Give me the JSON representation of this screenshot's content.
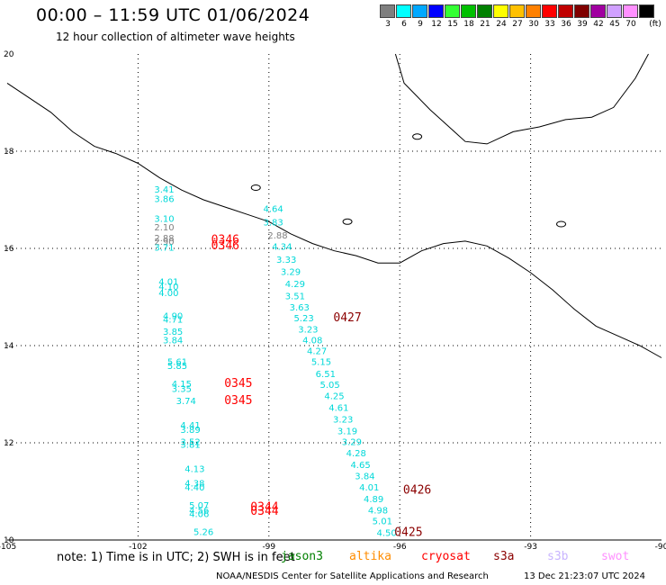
{
  "title": "00:00 – 11:59 UTC 01/06/2024",
  "subtitle": "12 hour collection of altimeter wave heights",
  "color_scale": {
    "unit_label": "(ft)",
    "swatches": [
      {
        "color": "#7f7f7f",
        "label": "3"
      },
      {
        "color": "#00ffff",
        "label": "6"
      },
      {
        "color": "#00a8ff",
        "label": "9"
      },
      {
        "color": "#0000ff",
        "label": "12"
      },
      {
        "color": "#33ff33",
        "label": "15"
      },
      {
        "color": "#00c000",
        "label": "18"
      },
      {
        "color": "#008000",
        "label": "21"
      },
      {
        "color": "#ffff00",
        "label": "24"
      },
      {
        "color": "#ffc000",
        "label": "27"
      },
      {
        "color": "#ff8000",
        "label": "30"
      },
      {
        "color": "#ff0000",
        "label": "33"
      },
      {
        "color": "#c00000",
        "label": "36"
      },
      {
        "color": "#800000",
        "label": "39"
      },
      {
        "color": "#a000a0",
        "label": "42"
      },
      {
        "color": "#d0a0ff",
        "label": "45"
      },
      {
        "color": "#ff90ff",
        "label": "70"
      },
      {
        "color": "#000000",
        "label": ""
      }
    ]
  },
  "axes": {
    "lon_ticks": [
      "-105",
      "-102",
      "-99",
      "-96",
      "-93",
      "-90"
    ],
    "lat_ticks": [
      "20",
      "18",
      "16",
      "14",
      "12",
      "10"
    ],
    "lon_range": [
      -105,
      -90
    ],
    "lat_range": [
      10,
      20
    ]
  },
  "map": {
    "type": "map",
    "coastline": [
      [
        -105,
        19.4
      ],
      [
        -104.5,
        19.1
      ],
      [
        -104,
        18.8
      ],
      [
        -103.5,
        18.4
      ],
      [
        -103,
        18.1
      ],
      [
        -102.5,
        17.95
      ],
      [
        -102,
        17.75
      ],
      [
        -101.5,
        17.45
      ],
      [
        -101,
        17.2
      ],
      [
        -100.5,
        17.0
      ],
      [
        -100,
        16.85
      ],
      [
        -99.5,
        16.7
      ],
      [
        -99,
        16.55
      ],
      [
        -98.5,
        16.3
      ],
      [
        -98,
        16.1
      ],
      [
        -97.5,
        15.95
      ],
      [
        -97,
        15.85
      ],
      [
        -96.5,
        15.7
      ],
      [
        -96,
        15.7
      ],
      [
        -95.5,
        15.95
      ],
      [
        -95,
        16.1
      ],
      [
        -94.5,
        16.15
      ],
      [
        -94,
        16.05
      ],
      [
        -93.5,
        15.8
      ],
      [
        -93,
        15.5
      ],
      [
        -92.5,
        15.15
      ],
      [
        -92,
        14.75
      ],
      [
        -91.5,
        14.4
      ],
      [
        -91,
        14.2
      ],
      [
        -90.5,
        14.0
      ],
      [
        -90,
        13.75
      ]
    ],
    "gulf_coast": [
      [
        -96.1,
        20.0
      ],
      [
        -95.9,
        19.4
      ],
      [
        -95.3,
        18.85
      ],
      [
        -94.5,
        18.2
      ],
      [
        -94,
        18.15
      ],
      [
        -93.4,
        18.4
      ],
      [
        -92.8,
        18.5
      ],
      [
        -92.2,
        18.65
      ],
      [
        -91.6,
        18.7
      ],
      [
        -91.1,
        18.9
      ],
      [
        -90.6,
        19.5
      ],
      [
        -90.3,
        20.0
      ]
    ],
    "lakes": [
      [
        -95.6,
        18.3
      ],
      [
        -97.2,
        16.55
      ],
      [
        -92.3,
        16.5
      ],
      [
        -99.3,
        17.25
      ]
    ]
  },
  "wave_heights": [
    {
      "lon": -101.4,
      "lat": 17.15,
      "v": "3.41",
      "c": "cyan"
    },
    {
      "lon": -101.4,
      "lat": 16.95,
      "v": "3.86",
      "c": "cyan"
    },
    {
      "lon": -101.4,
      "lat": 16.55,
      "v": "3.10",
      "c": "cyan"
    },
    {
      "lon": -101.4,
      "lat": 16.37,
      "v": "2.10",
      "c": "gray"
    },
    {
      "lon": -101.4,
      "lat": 16.15,
      "v": "2.88",
      "c": "gray"
    },
    {
      "lon": -101.4,
      "lat": 16.07,
      "v": "2.90",
      "c": "gray"
    },
    {
      "lon": -101.4,
      "lat": 15.95,
      "v": "3.71",
      "c": "cyan"
    },
    {
      "lon": -101.3,
      "lat": 15.25,
      "v": "4.01",
      "c": "cyan"
    },
    {
      "lon": -101.3,
      "lat": 15.15,
      "v": "4.10",
      "c": "cyan"
    },
    {
      "lon": -101.3,
      "lat": 15.02,
      "v": "4.00",
      "c": "cyan"
    },
    {
      "lon": -101.2,
      "lat": 14.55,
      "v": "4.90",
      "c": "cyan"
    },
    {
      "lon": -101.2,
      "lat": 14.47,
      "v": "4.71",
      "c": "cyan"
    },
    {
      "lon": -101.2,
      "lat": 14.22,
      "v": "3.85",
      "c": "cyan"
    },
    {
      "lon": -101.2,
      "lat": 14.05,
      "v": "3.84",
      "c": "cyan"
    },
    {
      "lon": -101.1,
      "lat": 13.6,
      "v": "5.61",
      "c": "cyan"
    },
    {
      "lon": -101.1,
      "lat": 13.52,
      "v": "5.85",
      "c": "cyan"
    },
    {
      "lon": -101.0,
      "lat": 13.15,
      "v": "4.15",
      "c": "cyan"
    },
    {
      "lon": -101.0,
      "lat": 13.05,
      "v": "3.35",
      "c": "cyan"
    },
    {
      "lon": -100.9,
      "lat": 12.8,
      "v": "3.74",
      "c": "cyan"
    },
    {
      "lon": -100.8,
      "lat": 12.3,
      "v": "4.41",
      "c": "cyan"
    },
    {
      "lon": -100.8,
      "lat": 12.2,
      "v": "3.89",
      "c": "cyan"
    },
    {
      "lon": -100.8,
      "lat": 11.95,
      "v": "3.52",
      "c": "cyan"
    },
    {
      "lon": -100.8,
      "lat": 11.9,
      "v": "3.81",
      "c": "cyan"
    },
    {
      "lon": -100.7,
      "lat": 11.4,
      "v": "4.13",
      "c": "cyan"
    },
    {
      "lon": -100.7,
      "lat": 11.1,
      "v": "4.38",
      "c": "cyan"
    },
    {
      "lon": -100.7,
      "lat": 11.02,
      "v": "4.40",
      "c": "cyan"
    },
    {
      "lon": -100.6,
      "lat": 10.65,
      "v": "5.07",
      "c": "cyan"
    },
    {
      "lon": -100.6,
      "lat": 10.55,
      "v": "4.56",
      "c": "cyan"
    },
    {
      "lon": -100.6,
      "lat": 10.47,
      "v": "4.06",
      "c": "cyan"
    },
    {
      "lon": -100.5,
      "lat": 10.1,
      "v": "5.26",
      "c": "cyan"
    },
    {
      "lon": -98.9,
      "lat": 16.75,
      "v": "4.64",
      "c": "cyan"
    },
    {
      "lon": -98.9,
      "lat": 16.47,
      "v": "3.83",
      "c": "cyan"
    },
    {
      "lon": -98.8,
      "lat": 16.2,
      "v": "2.88",
      "c": "gray"
    },
    {
      "lon": -98.7,
      "lat": 15.97,
      "v": "4.34",
      "c": "cyan"
    },
    {
      "lon": -98.6,
      "lat": 15.7,
      "v": "3.33",
      "c": "cyan"
    },
    {
      "lon": -98.5,
      "lat": 15.45,
      "v": "3.29",
      "c": "cyan"
    },
    {
      "lon": -98.4,
      "lat": 15.2,
      "v": "4.29",
      "c": "cyan"
    },
    {
      "lon": -98.4,
      "lat": 14.95,
      "v": "3.51",
      "c": "cyan"
    },
    {
      "lon": -98.3,
      "lat": 14.72,
      "v": "3.63",
      "c": "cyan"
    },
    {
      "lon": -98.2,
      "lat": 14.5,
      "v": "5.23",
      "c": "cyan"
    },
    {
      "lon": -98.1,
      "lat": 14.27,
      "v": "3.23",
      "c": "cyan"
    },
    {
      "lon": -98.0,
      "lat": 14.05,
      "v": "4.08",
      "c": "cyan"
    },
    {
      "lon": -97.9,
      "lat": 13.82,
      "v": "4.27",
      "c": "cyan"
    },
    {
      "lon": -97.8,
      "lat": 13.6,
      "v": "5.15",
      "c": "cyan"
    },
    {
      "lon": -97.7,
      "lat": 13.35,
      "v": "6.51",
      "c": "cyan"
    },
    {
      "lon": -97.6,
      "lat": 13.13,
      "v": "5.05",
      "c": "cyan"
    },
    {
      "lon": -97.5,
      "lat": 12.9,
      "v": "4.25",
      "c": "cyan"
    },
    {
      "lon": -97.4,
      "lat": 12.66,
      "v": "4.61",
      "c": "cyan"
    },
    {
      "lon": -97.3,
      "lat": 12.42,
      "v": "3.23",
      "c": "cyan"
    },
    {
      "lon": -97.2,
      "lat": 12.18,
      "v": "3.19",
      "c": "cyan"
    },
    {
      "lon": -97.1,
      "lat": 11.95,
      "v": "3.29",
      "c": "cyan"
    },
    {
      "lon": -97.0,
      "lat": 11.72,
      "v": "4.28",
      "c": "cyan"
    },
    {
      "lon": -96.9,
      "lat": 11.48,
      "v": "4.65",
      "c": "cyan"
    },
    {
      "lon": -96.8,
      "lat": 11.25,
      "v": "3.84",
      "c": "cyan"
    },
    {
      "lon": -96.7,
      "lat": 11.02,
      "v": "4.01",
      "c": "cyan"
    },
    {
      "lon": -96.6,
      "lat": 10.78,
      "v": "4.89",
      "c": "cyan"
    },
    {
      "lon": -96.5,
      "lat": 10.55,
      "v": "4.98",
      "c": "cyan"
    },
    {
      "lon": -96.4,
      "lat": 10.32,
      "v": "5.01",
      "c": "cyan"
    },
    {
      "lon": -96.3,
      "lat": 10.08,
      "v": "4.50",
      "c": "cyan"
    }
  ],
  "pass_labels": [
    {
      "lon": -100.0,
      "lat": 16.1,
      "v": "0346",
      "c": "red"
    },
    {
      "lon": -100.0,
      "lat": 15.98,
      "v": "0346",
      "c": "red"
    },
    {
      "lon": -97.2,
      "lat": 14.5,
      "v": "0427",
      "c": "maroon"
    },
    {
      "lon": -99.7,
      "lat": 13.15,
      "v": "0345",
      "c": "red"
    },
    {
      "lon": -99.7,
      "lat": 12.8,
      "v": "0345",
      "c": "red"
    },
    {
      "lon": -95.6,
      "lat": 10.95,
      "v": "0426",
      "c": "maroon"
    },
    {
      "lon": -99.1,
      "lat": 10.6,
      "v": "0344",
      "c": "red"
    },
    {
      "lon": -99.1,
      "lat": 10.52,
      "v": "0344",
      "c": "red"
    },
    {
      "lon": -95.8,
      "lat": 10.08,
      "v": "0425",
      "c": "maroon"
    }
  ],
  "note": "note:  1) Time is in UTC;  2) SWH is in feet",
  "satellites": [
    {
      "name": "jason3",
      "color": "#008000"
    },
    {
      "name": "altika",
      "color": "#ff8c00"
    },
    {
      "name": "cryosat",
      "color": "#ff0000"
    },
    {
      "name": "s3a",
      "color": "#8b0000"
    },
    {
      "name": "s3b",
      "color": "#c8b4ff"
    },
    {
      "name": "swot",
      "color": "#ff90ff"
    }
  ],
  "footer_left": "NOAA/NESDIS Center for Satellite Applications and Research",
  "footer_right": "13 Dec 21:23:07 UTC 2024"
}
